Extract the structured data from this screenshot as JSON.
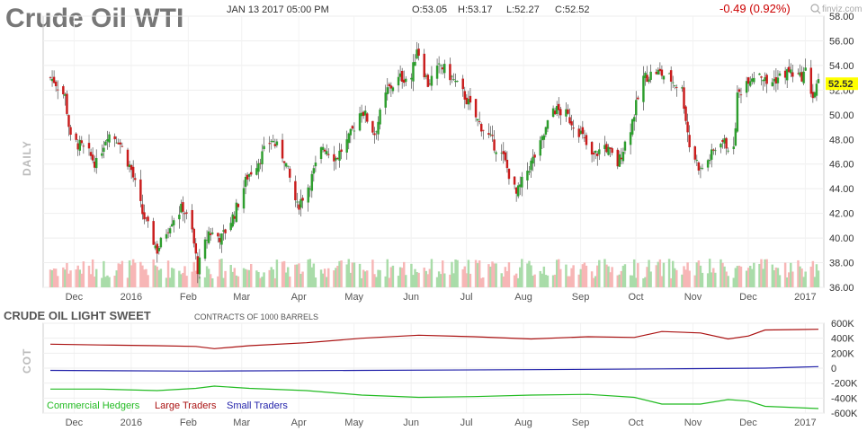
{
  "header": {
    "title": "Crude Oil WTI",
    "date": "JAN 13 2017 05:00 PM",
    "open": "O:53.05",
    "high": "H:53.17",
    "low": "L:52.27",
    "close": "C:52.52",
    "change": "-0.49 (0.92%)",
    "brand": "finviz.com",
    "side_label": "DAILY"
  },
  "colors": {
    "up": "#2e9e2e",
    "down": "#c91c1c",
    "vol_up": "#a9dca9",
    "vol_down": "#f7b6b6",
    "commercial": "#22bb22",
    "large": "#aa1111",
    "small": "#2222aa",
    "last_price_bg": "#ffff00"
  },
  "cot": {
    "title": "CRUDE OIL LIGHT SWEET",
    "unit": "CONTRACTS OF 1000 BARRELS",
    "side_label": "COT",
    "legend": [
      "Commercial Hedgers",
      "Large Traders",
      "Small Traders"
    ],
    "y_ticks": [
      "600K",
      "400K",
      "200K",
      "0",
      "-200K",
      "-400K",
      "-600K"
    ]
  },
  "chart_data": [
    {
      "type": "candlestick",
      "title": "Crude Oil WTI",
      "ylim": [
        36,
        58
      ],
      "y_ticks": [
        "58.00",
        "56.00",
        "54.00",
        "52.00",
        "50.00",
        "48.00",
        "46.00",
        "44.00",
        "42.00",
        "40.00",
        "38.00",
        "36.00"
      ],
      "x_labels": [
        "Dec",
        "2016",
        "Feb",
        "Mar",
        "Apr",
        "May",
        "Jun",
        "Jul",
        "Aug",
        "Sep",
        "Oct",
        "Nov",
        "Dec",
        "2017"
      ],
      "last_price": "52.52",
      "x_range": [
        "2015-11-23",
        "2017-01-13"
      ],
      "close_path": [
        [
          "2015-11-23",
          53.0
        ],
        [
          "2015-11-25",
          52.8
        ],
        [
          "2015-12-01",
          51.5
        ],
        [
          "2015-12-04",
          48.0
        ],
        [
          "2015-12-09",
          47.5
        ],
        [
          "2015-12-14",
          46.8
        ],
        [
          "2015-12-18",
          46.0
        ],
        [
          "2015-12-24",
          48.5
        ],
        [
          "2015-12-30",
          48.0
        ],
        [
          "2016-01-06",
          45.5
        ],
        [
          "2016-01-12",
          42.0
        ],
        [
          "2016-01-20",
          39.0
        ],
        [
          "2016-01-28",
          41.5
        ],
        [
          "2016-02-03",
          42.5
        ],
        [
          "2016-02-08",
          40.5
        ],
        [
          "2016-02-11",
          37.5
        ],
        [
          "2016-02-17",
          40.5
        ],
        [
          "2016-02-24",
          40.0
        ],
        [
          "2016-03-02",
          42.0
        ],
        [
          "2016-03-09",
          45.0
        ],
        [
          "2016-03-16",
          46.5
        ],
        [
          "2016-03-22",
          48.0
        ],
        [
          "2016-03-29",
          46.5
        ],
        [
          "2016-04-05",
          42.5
        ],
        [
          "2016-04-12",
          44.5
        ],
        [
          "2016-04-19",
          47.5
        ],
        [
          "2016-04-26",
          46.5
        ],
        [
          "2016-05-03",
          48.0
        ],
        [
          "2016-05-10",
          50.5
        ],
        [
          "2016-05-17",
          48.5
        ],
        [
          "2016-05-24",
          52.0
        ],
        [
          "2016-05-31",
          53.0
        ],
        [
          "2016-06-06",
          53.0
        ],
        [
          "2016-06-09",
          55.5
        ],
        [
          "2016-06-15",
          52.5
        ],
        [
          "2016-06-22",
          54.0
        ],
        [
          "2016-06-28",
          53.0
        ],
        [
          "2016-07-05",
          51.5
        ],
        [
          "2016-07-12",
          49.5
        ],
        [
          "2016-07-19",
          48.0
        ],
        [
          "2016-07-26",
          46.5
        ],
        [
          "2016-08-02",
          43.5
        ],
        [
          "2016-08-08",
          45.5
        ],
        [
          "2016-08-15",
          47.5
        ],
        [
          "2016-08-22",
          50.5
        ],
        [
          "2016-08-29",
          50.0
        ],
        [
          "2016-09-06",
          48.5
        ],
        [
          "2016-09-12",
          46.5
        ],
        [
          "2016-09-19",
          47.5
        ],
        [
          "2016-09-26",
          46.0
        ],
        [
          "2016-10-03",
          49.0
        ],
        [
          "2016-10-10",
          53.0
        ],
        [
          "2016-10-17",
          53.5
        ],
        [
          "2016-10-24",
          53.0
        ],
        [
          "2016-10-31",
          52.0
        ],
        [
          "2016-11-04",
          47.5
        ],
        [
          "2016-11-10",
          45.5
        ],
        [
          "2016-11-15",
          46.5
        ],
        [
          "2016-11-21",
          48.0
        ],
        [
          "2016-11-28",
          47.0
        ],
        [
          "2016-11-30",
          51.5
        ],
        [
          "2016-12-06",
          53.0
        ],
        [
          "2016-12-12",
          53.5
        ],
        [
          "2016-12-16",
          52.5
        ],
        [
          "2016-12-22",
          53.0
        ],
        [
          "2016-12-28",
          53.5
        ],
        [
          "2017-01-03",
          53.0
        ],
        [
          "2017-01-06",
          53.5
        ],
        [
          "2017-01-10",
          51.5
        ],
        [
          "2017-01-13",
          52.52
        ]
      ]
    },
    {
      "type": "line",
      "title": "CRUDE OIL LIGHT SWEET",
      "ylim": [
        -600000,
        600000
      ],
      "series": [
        {
          "name": "Commercial Hedgers",
          "points": [
            [
              "2015-11-23",
              -280000
            ],
            [
              "2015-12-20",
              -280000
            ],
            [
              "2016-01-20",
              -300000
            ],
            [
              "2016-02-10",
              -270000
            ],
            [
              "2016-02-20",
              -240000
            ],
            [
              "2016-03-10",
              -270000
            ],
            [
              "2016-04-10",
              -300000
            ],
            [
              "2016-05-10",
              -360000
            ],
            [
              "2016-06-10",
              -390000
            ],
            [
              "2016-07-10",
              -380000
            ],
            [
              "2016-08-10",
              -360000
            ],
            [
              "2016-09-10",
              -350000
            ],
            [
              "2016-10-05",
              -390000
            ],
            [
              "2016-10-20",
              -480000
            ],
            [
              "2016-11-10",
              -480000
            ],
            [
              "2016-11-25",
              -420000
            ],
            [
              "2016-12-06",
              -440000
            ],
            [
              "2016-12-15",
              -510000
            ],
            [
              "2017-01-13",
              -540000
            ]
          ]
        },
        {
          "name": "Large Traders",
          "points": [
            [
              "2015-11-23",
              320000
            ],
            [
              "2015-12-20",
              310000
            ],
            [
              "2016-01-20",
              300000
            ],
            [
              "2016-02-10",
              290000
            ],
            [
              "2016-02-20",
              260000
            ],
            [
              "2016-03-10",
              300000
            ],
            [
              "2016-04-10",
              340000
            ],
            [
              "2016-05-10",
              400000
            ],
            [
              "2016-06-10",
              440000
            ],
            [
              "2016-07-10",
              420000
            ],
            [
              "2016-08-10",
              390000
            ],
            [
              "2016-09-10",
              420000
            ],
            [
              "2016-10-05",
              410000
            ],
            [
              "2016-10-20",
              490000
            ],
            [
              "2016-11-10",
              470000
            ],
            [
              "2016-11-25",
              390000
            ],
            [
              "2016-12-06",
              430000
            ],
            [
              "2016-12-15",
              510000
            ],
            [
              "2017-01-13",
              520000
            ]
          ]
        },
        {
          "name": "Small Traders",
          "points": [
            [
              "2015-11-23",
              -30000
            ],
            [
              "2016-02-10",
              -40000
            ],
            [
              "2016-05-10",
              -30000
            ],
            [
              "2016-08-10",
              -20000
            ],
            [
              "2016-10-20",
              -10000
            ],
            [
              "2016-12-15",
              0
            ],
            [
              "2017-01-13",
              20000
            ]
          ]
        }
      ]
    }
  ]
}
